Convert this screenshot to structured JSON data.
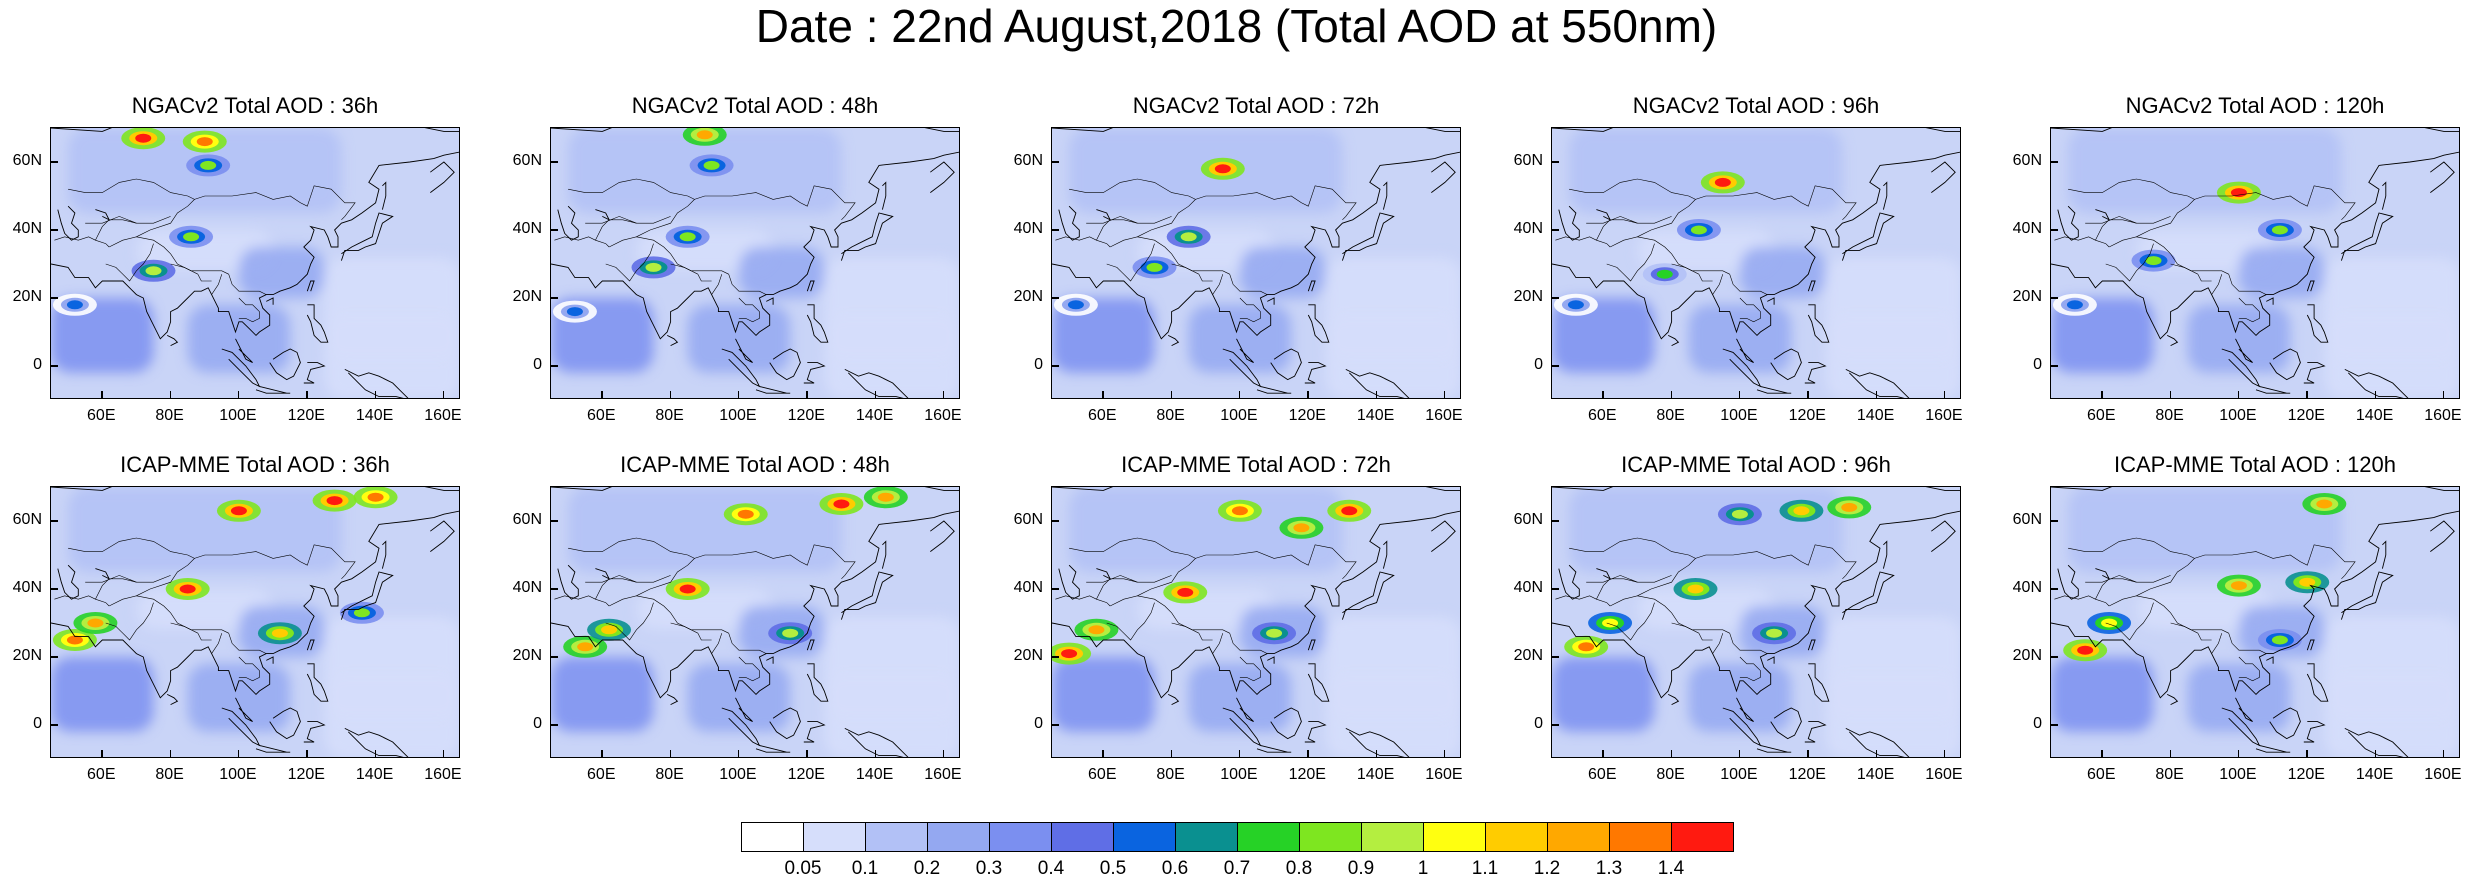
{
  "title": "Date : 22nd August,2018 (Total AOD at 550nm)",
  "lat_labels": [
    "60N",
    "40N",
    "20N",
    "0"
  ],
  "lon_labels": [
    "60E",
    "80E",
    "100E",
    "120E",
    "140E",
    "160E"
  ],
  "lat_values": [
    60,
    40,
    20,
    0
  ],
  "lon_values": [
    60,
    80,
    100,
    120,
    140,
    160
  ],
  "extent": {
    "lon": [
      45,
      165
    ],
    "lat": [
      -10,
      70
    ]
  },
  "rows": [
    {
      "model": "NGACv2",
      "panels": [
        {
          "title": "NGACv2 Total AOD : 36h",
          "hotspots": [
            {
              "lon": 72,
              "lat": 67,
              "level": 1.4
            },
            {
              "lon": 90,
              "lat": 66,
              "level": 1.3
            },
            {
              "lon": 91,
              "lat": 59,
              "level": 0.8
            },
            {
              "lon": 86,
              "lat": 38,
              "level": 0.8
            },
            {
              "lon": 75,
              "lat": 28,
              "level": 0.9
            },
            {
              "lon": 52,
              "lat": 18,
              "level": 0.5
            }
          ]
        },
        {
          "title": "NGACv2 Total AOD : 48h",
          "hotspots": [
            {
              "lon": 90,
              "lat": 68,
              "level": 1.2
            },
            {
              "lon": 92,
              "lat": 59,
              "level": 0.8
            },
            {
              "lon": 85,
              "lat": 38,
              "level": 0.8
            },
            {
              "lon": 75,
              "lat": 29,
              "level": 0.9
            },
            {
              "lon": 52,
              "lat": 16,
              "level": 0.5
            }
          ]
        },
        {
          "title": "NGACv2 Total AOD : 72h",
          "hotspots": [
            {
              "lon": 95,
              "lat": 58,
              "level": 1.4
            },
            {
              "lon": 85,
              "lat": 38,
              "level": 0.9
            },
            {
              "lon": 75,
              "lat": 29,
              "level": 0.8
            },
            {
              "lon": 52,
              "lat": 18,
              "level": 0.5
            }
          ]
        },
        {
          "title": "NGACv2 Total AOD : 96h",
          "hotspots": [
            {
              "lon": 95,
              "lat": 54,
              "level": 1.4
            },
            {
              "lon": 88,
              "lat": 40,
              "level": 0.8
            },
            {
              "lon": 78,
              "lat": 27,
              "level": 0.7
            },
            {
              "lon": 52,
              "lat": 18,
              "level": 0.5
            }
          ]
        },
        {
          "title": "NGACv2 Total AOD : 120h",
          "hotspots": [
            {
              "lon": 100,
              "lat": 51,
              "level": 1.4
            },
            {
              "lon": 112,
              "lat": 40,
              "level": 0.8
            },
            {
              "lon": 75,
              "lat": 31,
              "level": 0.8
            },
            {
              "lon": 52,
              "lat": 18,
              "level": 0.5
            }
          ]
        }
      ]
    },
    {
      "model": "ICAP-MME",
      "panels": [
        {
          "title": "ICAP-MME Total AOD : 36h",
          "hotspots": [
            {
              "lon": 100,
              "lat": 63,
              "level": 1.4
            },
            {
              "lon": 128,
              "lat": 66,
              "level": 1.4
            },
            {
              "lon": 140,
              "lat": 67,
              "level": 1.3
            },
            {
              "lon": 85,
              "lat": 40,
              "level": 1.4
            },
            {
              "lon": 52,
              "lat": 25,
              "level": 1.3
            },
            {
              "lon": 58,
              "lat": 30,
              "level": 1.2
            },
            {
              "lon": 112,
              "lat": 27,
              "level": 1.1
            },
            {
              "lon": 136,
              "lat": 33,
              "level": 0.8
            }
          ]
        },
        {
          "title": "ICAP-MME Total AOD : 48h",
          "hotspots": [
            {
              "lon": 102,
              "lat": 62,
              "level": 1.3
            },
            {
              "lon": 130,
              "lat": 65,
              "level": 1.4
            },
            {
              "lon": 143,
              "lat": 67,
              "level": 1.2
            },
            {
              "lon": 85,
              "lat": 40,
              "level": 1.4
            },
            {
              "lon": 55,
              "lat": 23,
              "level": 1.2
            },
            {
              "lon": 62,
              "lat": 28,
              "level": 1.1
            },
            {
              "lon": 115,
              "lat": 27,
              "level": 0.9
            }
          ]
        },
        {
          "title": "ICAP-MME Total AOD : 72h",
          "hotspots": [
            {
              "lon": 100,
              "lat": 63,
              "level": 1.3
            },
            {
              "lon": 132,
              "lat": 63,
              "level": 1.4
            },
            {
              "lon": 118,
              "lat": 58,
              "level": 1.2
            },
            {
              "lon": 84,
              "lat": 39,
              "level": 1.4
            },
            {
              "lon": 50,
              "lat": 21,
              "level": 1.4
            },
            {
              "lon": 58,
              "lat": 28,
              "level": 1.2
            },
            {
              "lon": 110,
              "lat": 27,
              "level": 0.9
            }
          ]
        },
        {
          "title": "ICAP-MME Total AOD : 96h",
          "hotspots": [
            {
              "lon": 118,
              "lat": 63,
              "level": 1.1
            },
            {
              "lon": 132,
              "lat": 64,
              "level": 1.2
            },
            {
              "lon": 100,
              "lat": 62,
              "level": 0.9
            },
            {
              "lon": 87,
              "lat": 40,
              "level": 1.1
            },
            {
              "lon": 55,
              "lat": 23,
              "level": 1.3
            },
            {
              "lon": 62,
              "lat": 30,
              "level": 1.0
            },
            {
              "lon": 110,
              "lat": 27,
              "level": 0.9
            }
          ]
        },
        {
          "title": "ICAP-MME Total AOD : 120h",
          "hotspots": [
            {
              "lon": 125,
              "lat": 65,
              "level": 1.2
            },
            {
              "lon": 100,
              "lat": 41,
              "level": 1.2
            },
            {
              "lon": 120,
              "lat": 42,
              "level": 1.1
            },
            {
              "lon": 55,
              "lat": 22,
              "level": 1.4
            },
            {
              "lon": 62,
              "lat": 30,
              "level": 1.0
            },
            {
              "lon": 112,
              "lat": 25,
              "level": 0.8
            }
          ]
        }
      ]
    }
  ],
  "colorbar": {
    "labels": [
      "0.05",
      "0.1",
      "0.2",
      "0.3",
      "0.4",
      "0.5",
      "0.6",
      "0.7",
      "0.8",
      "0.9",
      "1",
      "1.1",
      "1.2",
      "1.3",
      "1.4"
    ],
    "colors": [
      "#ffffff",
      "#d6defb",
      "#b2c1f6",
      "#94a8f1",
      "#7b8ff0",
      "#5f6ee6",
      "#0a64e0",
      "#0a9090",
      "#26d226",
      "#7ee620",
      "#b4ee40",
      "#ffff10",
      "#ffcc00",
      "#ffa800",
      "#ff7800",
      "#ff1a10"
    ]
  }
}
